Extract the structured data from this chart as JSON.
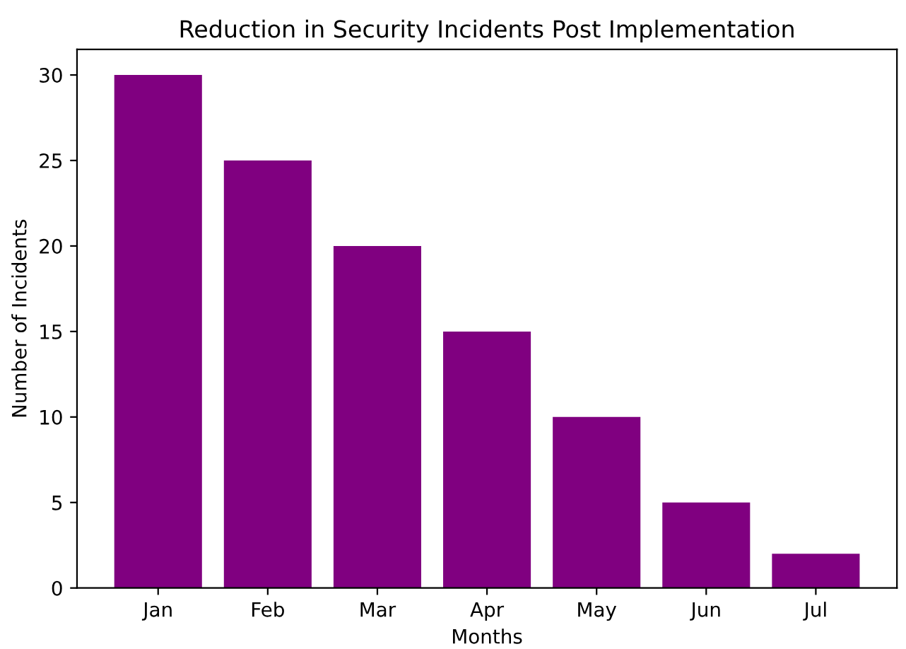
{
  "chart_data": {
    "type": "bar",
    "title": "Reduction in Security Incidents Post Implementation",
    "xlabel": "Months",
    "ylabel": "Number of Incidents",
    "categories": [
      "Jan",
      "Feb",
      "Mar",
      "Apr",
      "May",
      "Jun",
      "Jul"
    ],
    "values": [
      30,
      25,
      20,
      15,
      10,
      5,
      2
    ],
    "color": "#800080",
    "ylim": [
      0,
      31.5
    ],
    "yticks": [
      0,
      5,
      10,
      15,
      20,
      25,
      30
    ],
    "grid": false
  }
}
